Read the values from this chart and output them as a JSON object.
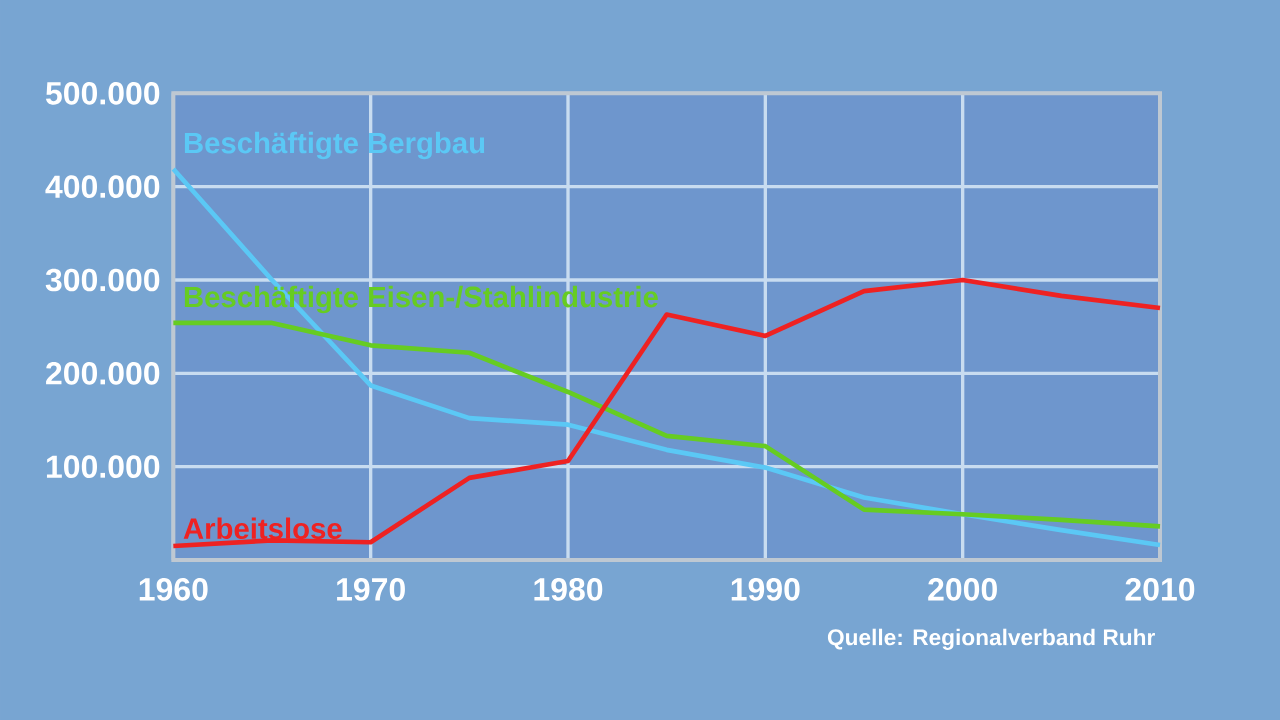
{
  "chart_data": {
    "type": "line",
    "x": [
      1960,
      1965,
      1970,
      1975,
      1980,
      1985,
      1990,
      1995,
      2000,
      2005,
      2010
    ],
    "series": [
      {
        "name": "Beschäftigte Bergbau",
        "color": "#5bc8f5",
        "values": [
          419000,
          300000,
          187000,
          152000,
          145000,
          118000,
          99000,
          67000,
          49000,
          32000,
          16000
        ]
      },
      {
        "name": "Beschäftigte Eisen-/Stahlindustrie",
        "color": "#66cc22",
        "values": [
          254000,
          254000,
          230000,
          222000,
          180000,
          133000,
          122000,
          54000,
          49000,
          43000,
          36000
        ]
      },
      {
        "name": "Arbeitslose",
        "color": "#ee2222",
        "values": [
          15000,
          21000,
          19000,
          88000,
          106000,
          263000,
          240000,
          288000,
          300000,
          283000,
          270000
        ]
      }
    ],
    "xlim": [
      1960,
      2010
    ],
    "xticks": [
      1960,
      1970,
      1980,
      1990,
      2000,
      2010
    ],
    "ylim": [
      0,
      500000
    ],
    "yticks": [
      {
        "value": 100000,
        "label": "100.000"
      },
      {
        "value": 200000,
        "label": "200.000"
      },
      {
        "value": 300000,
        "label": "300.000"
      },
      {
        "value": 400000,
        "label": "400.000"
      },
      {
        "value": 500000,
        "label": "500.000"
      }
    ],
    "grid": true,
    "annotations": [
      "Quelle: Regionalverband Ruhr"
    ]
  }
}
